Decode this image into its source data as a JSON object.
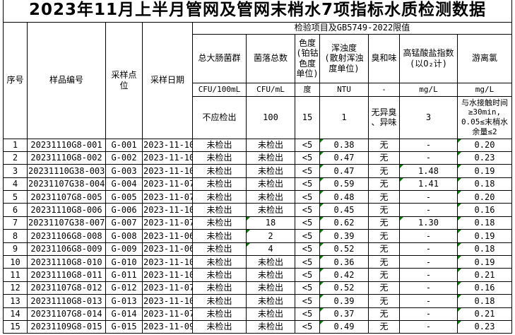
{
  "title": "2023年11月上半月管网及管网末梢水7项指标水质检测数据",
  "header": {
    "span_header": "检验项目及GB5749-2022限值",
    "fixed_columns": [
      "序号",
      "样品编号",
      "采样点\n位",
      "采样日期"
    ],
    "param_columns": [
      {
        "name": "总大肠菌群",
        "unit": "CFU/100mL",
        "limit": "不应检出"
      },
      {
        "name": "菌落总数",
        "unit": "CFU/mL",
        "limit": "100"
      },
      {
        "name": "色度\n(铂钴\n色度\n单位)",
        "unit": "度",
        "limit": "15"
      },
      {
        "name": "浑浊度\n(散射浑浊\n度单位)",
        "unit": "NTU",
        "limit": "1"
      },
      {
        "name": "臭和味",
        "unit": "-",
        "limit": "无异臭\n、异味"
      },
      {
        "name": "高锰酸盐指数\n(以O₂计)",
        "unit": "mg/L",
        "limit": "3"
      },
      {
        "name": "游离氯",
        "unit": "mg/L",
        "limit": "与水接触时间\n≥30min,\n0.05≤末梢水\n余量≤2"
      }
    ]
  },
  "colors": {
    "border": "#000000",
    "error_triangle": "#007b00",
    "background": "#ffffff"
  },
  "rows": [
    {
      "no": "1",
      "sample": "20231110G8-001",
      "point": "G-001",
      "date": "2023-11-10",
      "coliform": "未检出",
      "colony": "未检出",
      "chroma": "<5",
      "turbidity": "0.38",
      "odor": "无",
      "permanganate": "-",
      "chlorine": "0.20",
      "triangles": [
        "turbidity",
        "chlorine"
      ]
    },
    {
      "no": "2",
      "sample": "20231110G8-002",
      "point": "G-002",
      "date": "2023-11-10",
      "coliform": "未检出",
      "colony": "未检出",
      "chroma": "<5",
      "turbidity": "0.47",
      "odor": "无",
      "permanganate": "-",
      "chlorine": "0.23",
      "triangles": [
        "turbidity",
        "chlorine"
      ]
    },
    {
      "no": "3",
      "sample": "20231110G38-003",
      "point": "G-003",
      "date": "2023-11-10",
      "coliform": "未检出",
      "colony": "未检出",
      "chroma": "<5",
      "turbidity": "0.47",
      "odor": "无",
      "permanganate": "1.48",
      "chlorine": "0.19",
      "triangles": [
        "turbidity",
        "permanganate",
        "chlorine"
      ]
    },
    {
      "no": "4",
      "sample": "20231107G38-004",
      "point": "G-004",
      "date": "2023-11-07",
      "coliform": "未检出",
      "colony": "未检出",
      "chroma": "<5",
      "turbidity": "0.59",
      "odor": "无",
      "permanganate": "1.41",
      "chlorine": "0.18",
      "triangles": [
        "turbidity",
        "permanganate",
        "chlorine"
      ]
    },
    {
      "no": "5",
      "sample": "20231107G8-005",
      "point": "G-005",
      "date": "2023-11-07",
      "coliform": "未检出",
      "colony": "未检出",
      "chroma": "<5",
      "turbidity": "0.48",
      "odor": "无",
      "permanganate": "-",
      "chlorine": "0.20",
      "triangles": [
        "turbidity",
        "chlorine"
      ]
    },
    {
      "no": "6",
      "sample": "20231110G8-006",
      "point": "G-006",
      "date": "2023-11-10",
      "coliform": "未检出",
      "colony": "未检出",
      "chroma": "<5",
      "turbidity": "0.45",
      "odor": "无",
      "permanganate": "-",
      "chlorine": "0.16",
      "triangles": [
        "turbidity",
        "chlorine"
      ]
    },
    {
      "no": "7",
      "sample": "20231107G38-007",
      "point": "G-007",
      "date": "2023-11-07",
      "coliform": "未检出",
      "colony": "18",
      "chroma": "<5",
      "turbidity": "0.62",
      "odor": "无",
      "permanganate": "1.30",
      "chlorine": "0.18",
      "triangles": [
        "colony",
        "turbidity",
        "permanganate",
        "chlorine"
      ]
    },
    {
      "no": "8",
      "sample": "20231106G8-008",
      "point": "G-008",
      "date": "2023-11-06",
      "coliform": "未检出",
      "colony": "2",
      "chroma": "<5",
      "turbidity": "0.39",
      "odor": "无",
      "permanganate": "-",
      "chlorine": "0.19",
      "triangles": [
        "colony",
        "turbidity",
        "chlorine"
      ]
    },
    {
      "no": "9",
      "sample": "20231106G8-009",
      "point": "G-009",
      "date": "2023-11-06",
      "coliform": "未检出",
      "colony": "4",
      "chroma": "<5",
      "turbidity": "0.52",
      "odor": "无",
      "permanganate": "-",
      "chlorine": "0.18",
      "triangles": [
        "colony",
        "turbidity",
        "chlorine"
      ]
    },
    {
      "no": "10",
      "sample": "20231110G8-010",
      "point": "G-010",
      "date": "2023-11-10",
      "coliform": "未检出",
      "colony": "未检出",
      "chroma": "<5",
      "turbidity": "0.36",
      "odor": "无",
      "permanganate": "-",
      "chlorine": "0.19",
      "triangles": [
        "turbidity",
        "chlorine"
      ]
    },
    {
      "no": "11",
      "sample": "20231110G8-011",
      "point": "G-011",
      "date": "2023-11-10",
      "coliform": "未检出",
      "colony": "未检出",
      "chroma": "<5",
      "turbidity": "0.42",
      "odor": "无",
      "permanganate": "-",
      "chlorine": "0.21",
      "triangles": [
        "turbidity",
        "chlorine"
      ]
    },
    {
      "no": "12",
      "sample": "20231107G8-012",
      "point": "G-012",
      "date": "2023-11-07",
      "coliform": "未检出",
      "colony": "未检出",
      "chroma": "<5",
      "turbidity": "0.52",
      "odor": "无",
      "permanganate": "-",
      "chlorine": "0.16",
      "triangles": [
        "turbidity",
        "chlorine"
      ]
    },
    {
      "no": "13",
      "sample": "20231110G8-013",
      "point": "G-013",
      "date": "2023-11-10",
      "coliform": "未检出",
      "colony": "未检出",
      "chroma": "<5",
      "turbidity": "0.39",
      "odor": "无",
      "permanganate": "-",
      "chlorine": "0.18",
      "triangles": [
        "turbidity",
        "chlorine"
      ]
    },
    {
      "no": "14",
      "sample": "20231107G8-014",
      "point": "G-014",
      "date": "2023-11-07",
      "coliform": "未检出",
      "colony": "未检出",
      "chroma": "<5",
      "turbidity": "0.37",
      "odor": "无",
      "permanganate": "-",
      "chlorine": "0.21",
      "triangles": [
        "turbidity",
        "chlorine"
      ]
    },
    {
      "no": "15",
      "sample": "20231109G8-015",
      "point": "G-015",
      "date": "2023-11-09",
      "coliform": "未检出",
      "colony": "未检出",
      "chroma": "<5",
      "turbidity": "0.49",
      "odor": "无",
      "permanganate": "-",
      "chlorine": "0.23",
      "triangles": [
        "turbidity",
        "chlorine"
      ]
    }
  ]
}
